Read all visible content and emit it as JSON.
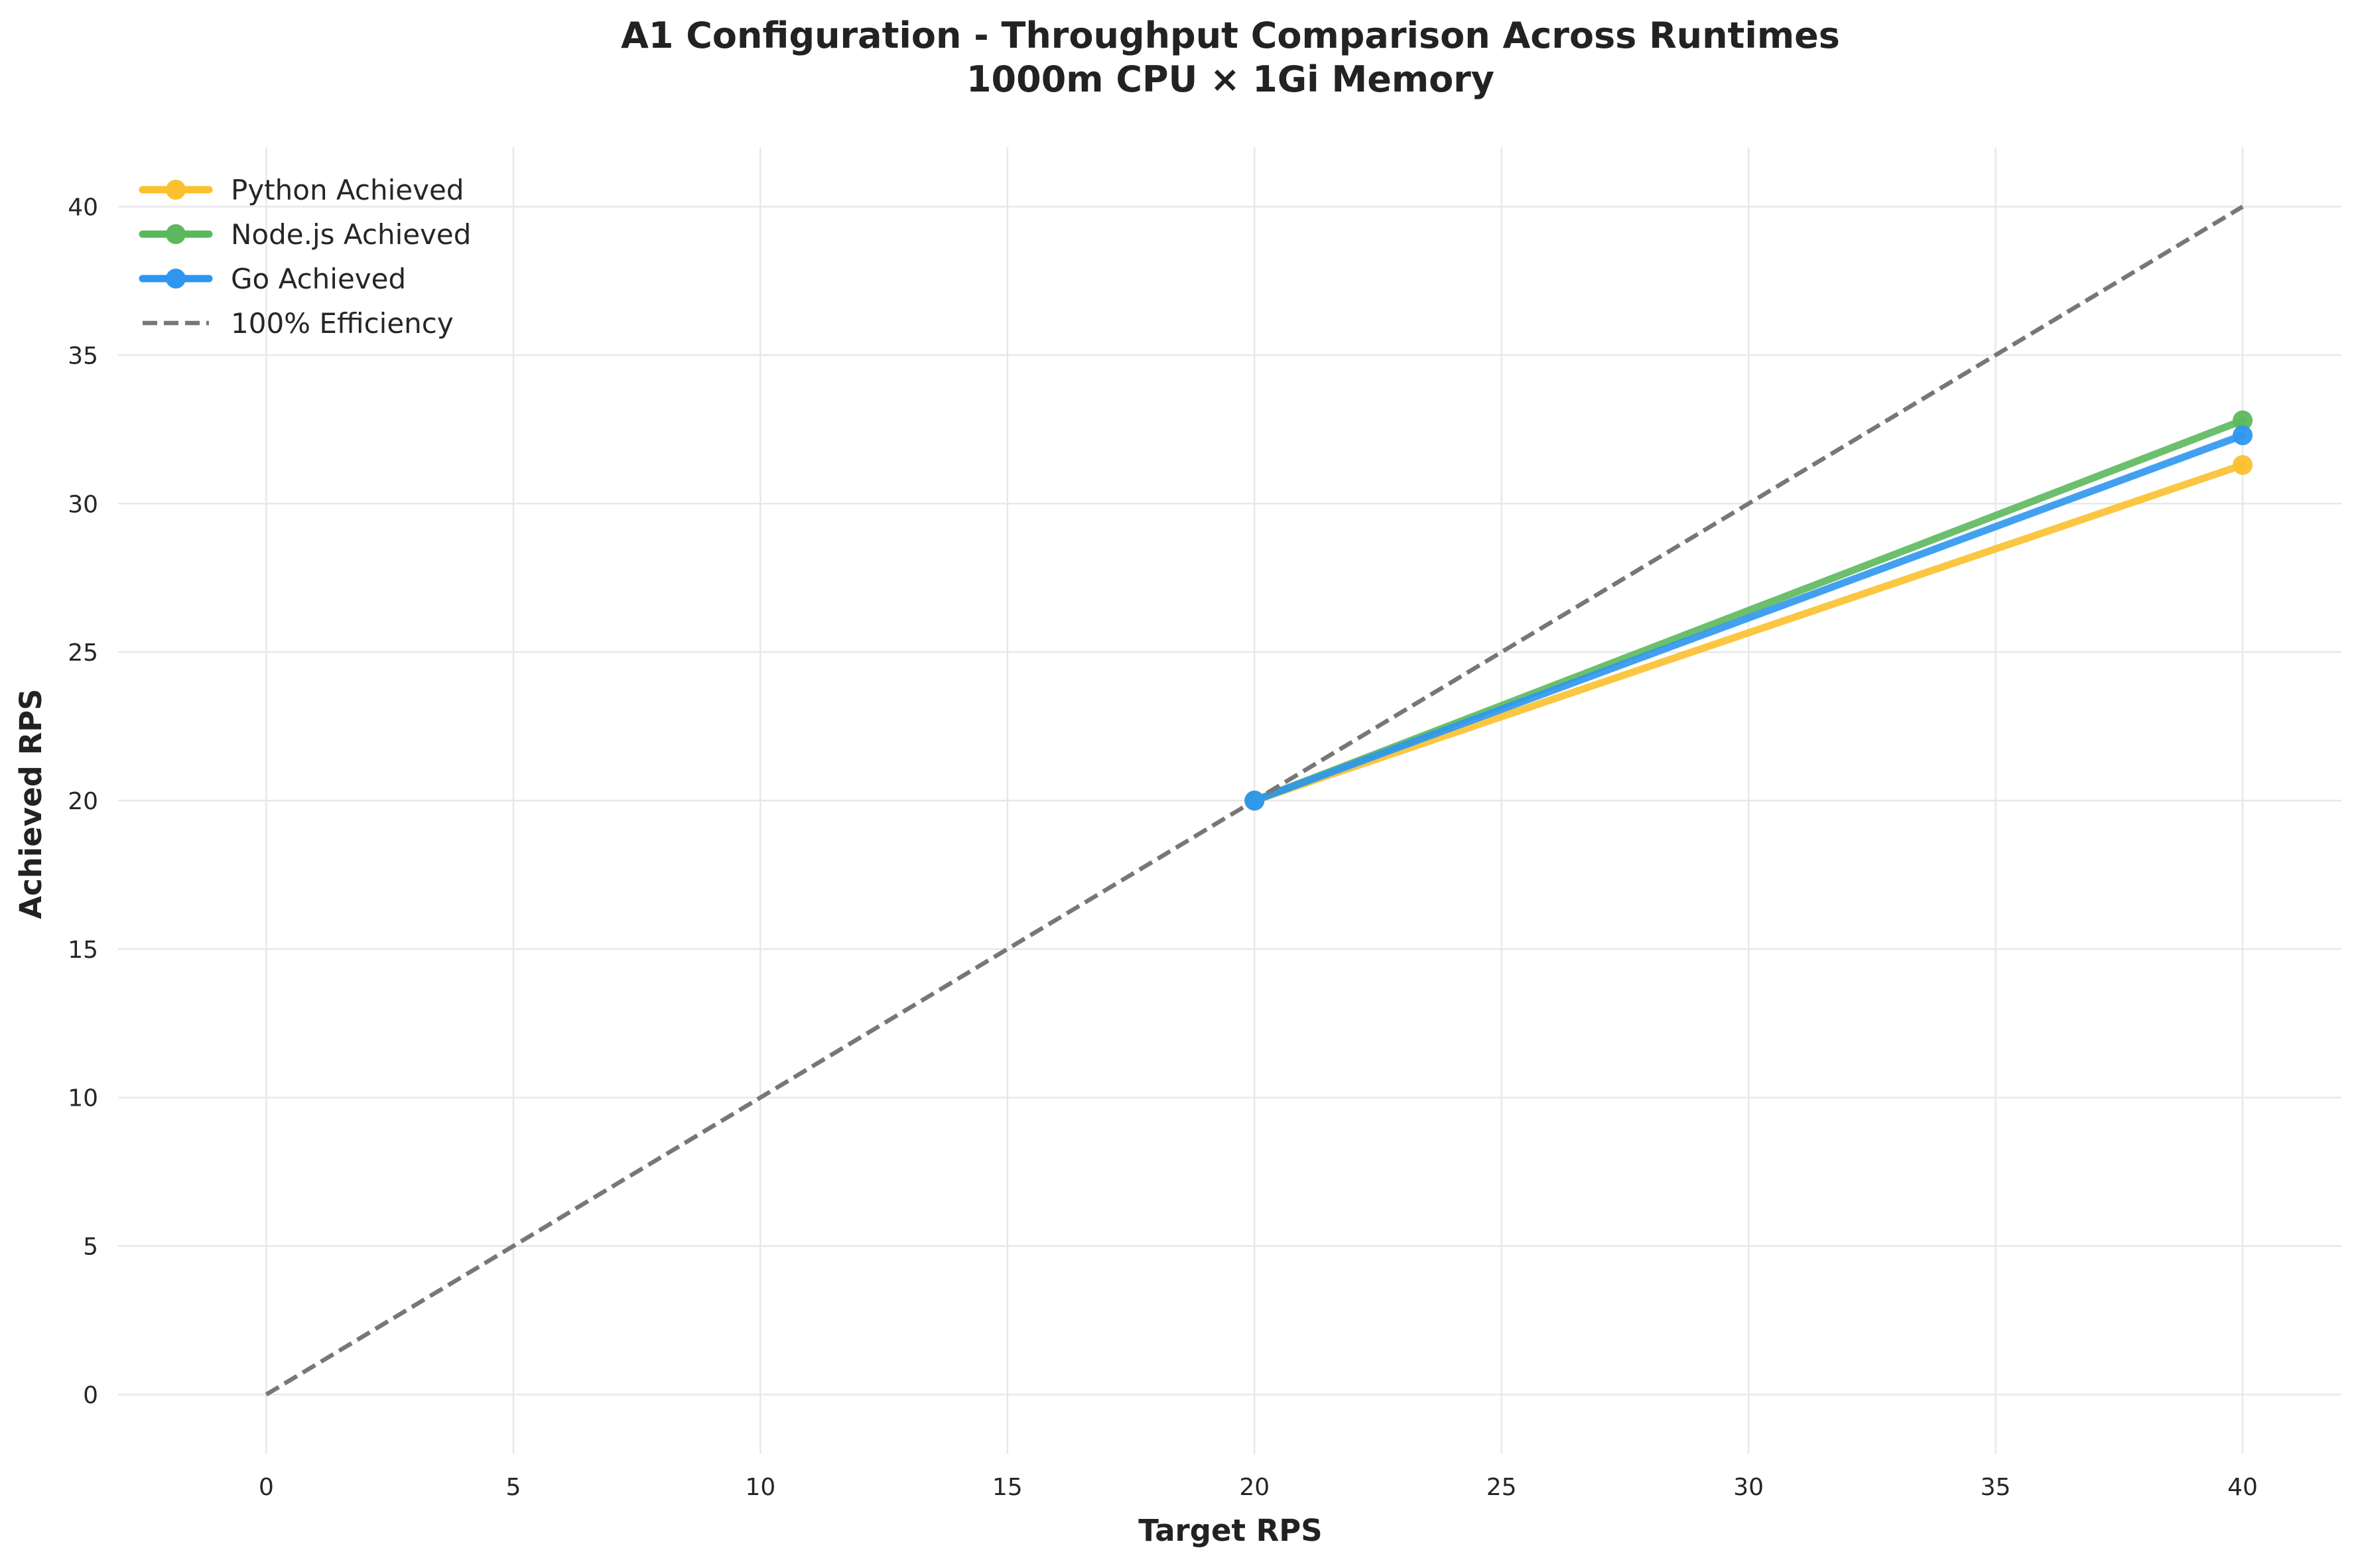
{
  "chart_data": {
    "type": "line",
    "title_lines": [
      "A1 Configuration - Throughput Comparison Across Runtimes",
      "1000m CPU × 1Gi Memory"
    ],
    "xlabel": "Target RPS",
    "ylabel": "Achieved RPS",
    "xlim": [
      -3,
      42
    ],
    "ylim": [
      -2,
      42
    ],
    "xticks": [
      0,
      5,
      10,
      15,
      20,
      25,
      30,
      35,
      40
    ],
    "yticks": [
      0,
      5,
      10,
      15,
      20,
      25,
      30,
      35,
      40
    ],
    "grid": true,
    "legend_position": "top-left",
    "series": [
      {
        "name": "Python Achieved",
        "color": "#fbc02d",
        "style": "solid-marker",
        "x": [
          20,
          40
        ],
        "y": [
          20.0,
          31.3
        ]
      },
      {
        "name": "Node.js Achieved",
        "color": "#5cb85c",
        "style": "solid-marker",
        "x": [
          20,
          40
        ],
        "y": [
          20.0,
          32.8
        ]
      },
      {
        "name": "Go Achieved",
        "color": "#2f96f0",
        "style": "solid-marker",
        "x": [
          20,
          40
        ],
        "y": [
          20.0,
          32.3
        ]
      },
      {
        "name": "100% Efficiency",
        "color": "#777777",
        "style": "dashed",
        "x": [
          0,
          40
        ],
        "y": [
          0,
          40
        ]
      }
    ]
  }
}
